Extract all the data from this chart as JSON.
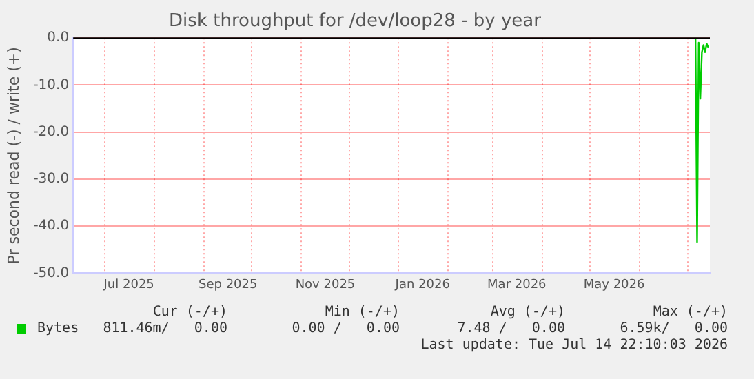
{
  "chart_data": {
    "type": "line",
    "title": "Disk throughput for /dev/loop28 - by year",
    "ylabel": "Pr second read (-) / write (+)",
    "x": [
      "2026-07-05",
      "2026-07-06",
      "2026-07-07",
      "2026-07-08",
      "2026-07-09",
      "2026-07-10",
      "2026-07-11",
      "2026-07-12",
      "2026-07-13",
      "2026-07-14"
    ],
    "series": [
      {
        "name": "Bytes",
        "color": "#00cc00",
        "values": [
          0,
          -0.2,
          -43.4,
          -1,
          -12.9,
          -3,
          -1.5,
          -3,
          -1.2,
          -2
        ]
      }
    ],
    "xlim": [
      "2025-06-11",
      "2026-07-15"
    ],
    "xticks": [
      {
        "value": "2025-07-01",
        "label": null
      },
      {
        "value": "2025-07-16",
        "label": "Jul 2025"
      },
      {
        "value": "2025-08-01",
        "label": null
      },
      {
        "value": "2025-09-01",
        "label": null
      },
      {
        "value": "2025-09-16",
        "label": "Sep 2025"
      },
      {
        "value": "2025-10-01",
        "label": null
      },
      {
        "value": "2025-11-01",
        "label": null
      },
      {
        "value": "2025-11-16",
        "label": "Nov 2025"
      },
      {
        "value": "2025-12-01",
        "label": null
      },
      {
        "value": "2026-01-01",
        "label": null
      },
      {
        "value": "2026-01-16",
        "label": "Jan 2026"
      },
      {
        "value": "2026-02-01",
        "label": null
      },
      {
        "value": "2026-03-01",
        "label": null
      },
      {
        "value": "2026-03-16",
        "label": "Mar 2026"
      },
      {
        "value": "2026-04-01",
        "label": null
      },
      {
        "value": "2026-05-01",
        "label": null
      },
      {
        "value": "2026-05-16",
        "label": "May 2026"
      },
      {
        "value": "2026-06-01",
        "label": null
      },
      {
        "value": "2026-07-01",
        "label": null
      }
    ],
    "ylim": [
      -50,
      0
    ],
    "yticks": [
      {
        "value": -50,
        "label": "-50.0"
      },
      {
        "value": -40,
        "label": "-40.0"
      },
      {
        "value": -30,
        "label": "-30.0"
      },
      {
        "value": -20,
        "label": "-20.0"
      },
      {
        "value": -10,
        "label": "-10.0"
      },
      {
        "value": 0,
        "label": "0.0"
      }
    ],
    "ref_lines": [
      {
        "axis": "y",
        "value": 0,
        "color": "#000000"
      }
    ],
    "grid": true,
    "legend": "bottom",
    "marker": "none",
    "line_style": "solid",
    "annotations": [
      "Cur (-/+)",
      "Min (-/+)",
      "Avg (-/+)",
      "Max (-/+)",
      "811.46m/   0.00",
      "0.00 /   0.00",
      "7.48 /   0.00",
      "6.59k/   0.00",
      "Last update: Tue Jul 14 22:10:03 2026"
    ]
  }
}
